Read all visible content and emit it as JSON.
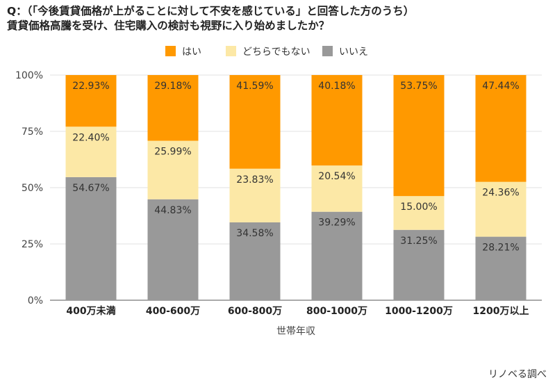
{
  "title": {
    "line1": "Q：（「今後賃貸価格が上がることに対して不安を感じている」と回答した方のうち）",
    "line2": "賃貸価格高騰を受け、住宅購入の検討も視野に入り始めましたか？"
  },
  "credit": "リノベる調べ",
  "chart_data": {
    "type": "bar",
    "stacked": true,
    "percent_stacked": true,
    "title": "Q：（「今後賃貸価格が上がることに対して不安を感じている」と回答した方のうち）賃貸価格高騰を受け、住宅購入の検討も視野に入り始めましたか？",
    "xlabel": "世帯年収",
    "ylabel": "",
    "ylim": [
      0,
      100
    ],
    "yticks": [
      "0%",
      "25%",
      "50%",
      "75%",
      "100%"
    ],
    "ytick_values": [
      0,
      25,
      50,
      75,
      100
    ],
    "categories": [
      "400万未満",
      "400-600万",
      "600-800万",
      "800-1000万",
      "1000-1200万",
      "1200万以上"
    ],
    "legend_position": "top-center",
    "series": [
      {
        "name": "いいえ",
        "color": "#999999",
        "values": [
          54.67,
          44.83,
          34.58,
          39.29,
          31.25,
          28.21
        ],
        "labels": [
          "54.67%",
          "44.83%",
          "34.58%",
          "39.29%",
          "31.25%",
          "28.21%"
        ]
      },
      {
        "name": "どちらでもない",
        "color": "#fce8a6",
        "values": [
          22.4,
          25.99,
          23.83,
          20.54,
          15.0,
          24.36
        ],
        "labels": [
          "22.40%",
          "25.99%",
          "23.83%",
          "20.54%",
          "15.00%",
          "24.36%"
        ]
      },
      {
        "name": "はい",
        "color": "#ff9900",
        "values": [
          22.93,
          29.18,
          41.59,
          40.18,
          53.75,
          47.44
        ],
        "labels": [
          "22.93%",
          "29.18%",
          "41.59%",
          "40.18%",
          "53.75%",
          "47.44%"
        ]
      }
    ],
    "legend_order": [
      "はい",
      "どちらでもない",
      "いいえ"
    ],
    "grid": true
  }
}
